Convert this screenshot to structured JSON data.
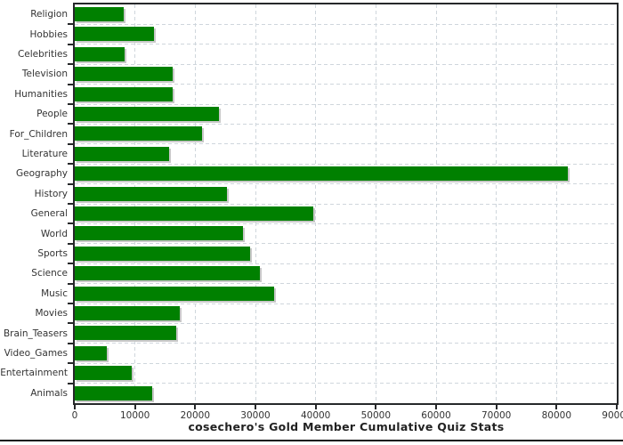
{
  "chart_data": {
    "type": "bar",
    "orientation": "horizontal",
    "title": "cosechero's Gold Member Cumulative Quiz Stats",
    "categories": [
      "Religion",
      "Hobbies",
      "Celebrities",
      "Television",
      "Humanities",
      "People",
      "For_Children",
      "Literature",
      "Geography",
      "History",
      "General",
      "World",
      "Sports",
      "Science",
      "Music",
      "Movies",
      "Brain_Teasers",
      "Video_Games",
      "Entertainment",
      "Animals"
    ],
    "values": [
      8100,
      13100,
      8300,
      16300,
      16200,
      23900,
      21100,
      15700,
      81900,
      25200,
      39600,
      27900,
      29100,
      30700,
      33100,
      17400,
      16800,
      5300,
      9500,
      12900
    ],
    "xlim": [
      0,
      90000
    ],
    "x_ticks": [
      0,
      10000,
      20000,
      30000,
      40000,
      50000,
      60000,
      70000,
      80000,
      90000
    ],
    "x_tick_labels": [
      "0",
      "10000",
      "20000",
      "30000",
      "40000",
      "50000",
      "60000",
      "70000",
      "80000",
      "90000"
    ],
    "grid": "dashed-both-axes",
    "legend": "none",
    "colors": {
      "bar": "#008000",
      "bar_shadow": "#c8c8c8",
      "grid": "#cfd6dc",
      "axis_border": "#26282a",
      "tick_text": "#333333",
      "title_text": "#222222",
      "bottom_rule": "#111111",
      "background": "#ffffff"
    }
  }
}
